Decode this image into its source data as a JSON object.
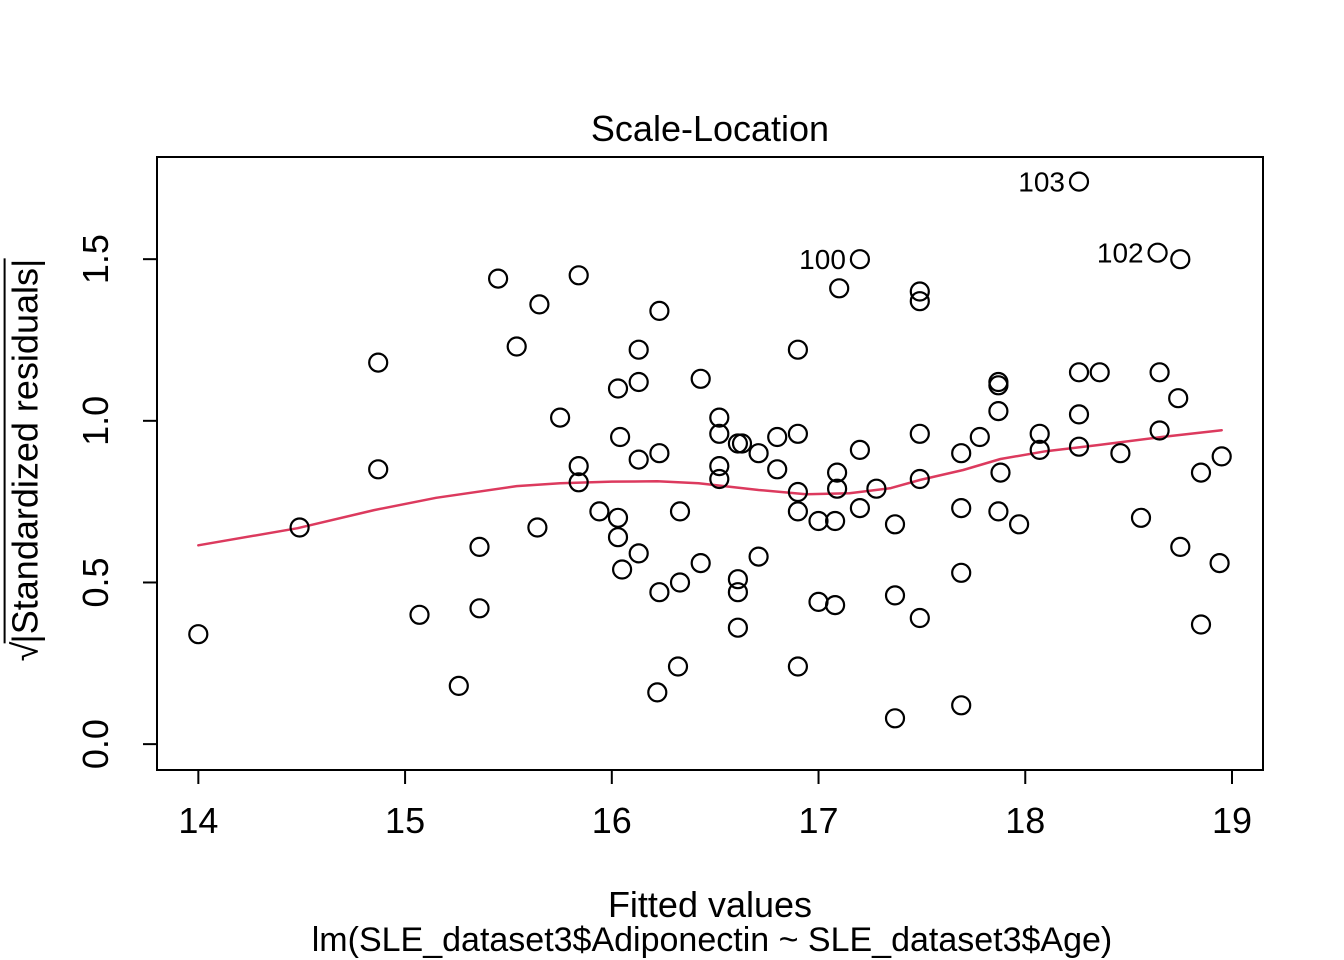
{
  "chart_data": {
    "type": "scatter",
    "title": "Scale-Location",
    "xlabel": "Fitted values",
    "xlabel_sub": "lm(SLE_dataset3$Adiponectin ~ SLE_dataset3$Age)",
    "ylabel_prefix": "√",
    "ylabel_overlined": "|Standardized residuals|",
    "x_ticks": [
      "14",
      "15",
      "16",
      "17",
      "18",
      "19"
    ],
    "y_ticks": [
      "0.0",
      "0.5",
      "1.0",
      "1.5"
    ],
    "xlim": [
      13.8,
      19.15
    ],
    "ylim": [
      -0.08,
      1.816
    ],
    "grid": false,
    "legend": "none",
    "point_color": "#000000",
    "smooth_color": "#DC3A5E",
    "points": [
      [
        14.0,
        0.34
      ],
      [
        14.49,
        0.67
      ],
      [
        14.87,
        1.18
      ],
      [
        14.87,
        0.85
      ],
      [
        15.07,
        0.4
      ],
      [
        15.26,
        0.18
      ],
      [
        15.36,
        0.61
      ],
      [
        15.36,
        0.42
      ],
      [
        15.45,
        1.44
      ],
      [
        15.54,
        1.23
      ],
      [
        15.65,
        1.36
      ],
      [
        15.64,
        0.67
      ],
      [
        15.75,
        1.01
      ],
      [
        15.84,
        1.45
      ],
      [
        15.84,
        0.86
      ],
      [
        15.84,
        0.81
      ],
      [
        15.94,
        0.72
      ],
      [
        16.03,
        1.1
      ],
      [
        16.03,
        0.7
      ],
      [
        16.03,
        0.64
      ],
      [
        16.13,
        1.12
      ],
      [
        16.04,
        0.95
      ],
      [
        16.05,
        0.54
      ],
      [
        16.13,
        1.22
      ],
      [
        16.13,
        0.88
      ],
      [
        16.13,
        0.59
      ],
      [
        16.22,
        0.16
      ],
      [
        16.23,
        1.34
      ],
      [
        16.23,
        0.9
      ],
      [
        16.23,
        0.47
      ],
      [
        16.32,
        0.24
      ],
      [
        16.33,
        0.72
      ],
      [
        16.33,
        0.5
      ],
      [
        16.43,
        1.13
      ],
      [
        16.43,
        0.56
      ],
      [
        16.52,
        1.01
      ],
      [
        16.52,
        0.96
      ],
      [
        16.52,
        0.86
      ],
      [
        16.52,
        0.82
      ],
      [
        16.61,
        0.93
      ],
      [
        16.63,
        0.93
      ],
      [
        16.61,
        0.51
      ],
      [
        16.61,
        0.47
      ],
      [
        16.61,
        0.36
      ],
      [
        16.71,
        0.9
      ],
      [
        16.71,
        0.58
      ],
      [
        16.8,
        0.95
      ],
      [
        16.8,
        0.85
      ],
      [
        16.9,
        1.22
      ],
      [
        16.9,
        0.96
      ],
      [
        16.9,
        0.78
      ],
      [
        16.9,
        0.72
      ],
      [
        16.9,
        0.24
      ],
      [
        17.0,
        0.69
      ],
      [
        17.0,
        0.44
      ],
      [
        17.08,
        0.69
      ],
      [
        17.08,
        0.43
      ],
      [
        17.09,
        0.84
      ],
      [
        17.09,
        0.79
      ],
      [
        17.1,
        1.41
      ],
      [
        17.2,
        1.5
      ],
      [
        17.2,
        0.91
      ],
      [
        17.2,
        0.73
      ],
      [
        17.28,
        0.79
      ],
      [
        17.37,
        0.68
      ],
      [
        17.37,
        0.46
      ],
      [
        17.37,
        0.08
      ],
      [
        17.49,
        1.4
      ],
      [
        17.49,
        1.37
      ],
      [
        17.49,
        0.96
      ],
      [
        17.49,
        0.82
      ],
      [
        17.49,
        0.39
      ],
      [
        17.69,
        0.9
      ],
      [
        17.69,
        0.73
      ],
      [
        17.69,
        0.53
      ],
      [
        17.69,
        0.12
      ],
      [
        17.78,
        0.95
      ],
      [
        17.87,
        1.12
      ],
      [
        17.87,
        1.11
      ],
      [
        17.87,
        1.03
      ],
      [
        17.88,
        0.84
      ],
      [
        17.87,
        0.72
      ],
      [
        17.97,
        0.68
      ],
      [
        18.07,
        0.96
      ],
      [
        18.07,
        0.91
      ],
      [
        18.26,
        1.74
      ],
      [
        18.26,
        1.15
      ],
      [
        18.26,
        1.02
      ],
      [
        18.26,
        0.92
      ],
      [
        18.36,
        1.15
      ],
      [
        18.46,
        0.9
      ],
      [
        18.56,
        0.7
      ],
      [
        18.64,
        1.52
      ],
      [
        18.65,
        1.15
      ],
      [
        18.65,
        0.97
      ],
      [
        18.74,
        1.07
      ],
      [
        18.75,
        1.5
      ],
      [
        18.75,
        0.61
      ],
      [
        18.85,
        0.84
      ],
      [
        18.85,
        0.37
      ],
      [
        18.95,
        0.89
      ],
      [
        18.94,
        0.56
      ]
    ],
    "labeled_points": [
      {
        "label": "103",
        "x": 18.26,
        "y": 1.74
      },
      {
        "label": "100",
        "x": 17.2,
        "y": 1.5
      },
      {
        "label": "102",
        "x": 18.64,
        "y": 1.52
      }
    ],
    "smooth_line": [
      [
        14.0,
        0.615
      ],
      [
        14.48,
        0.668
      ],
      [
        14.85,
        0.724
      ],
      [
        15.15,
        0.762
      ],
      [
        15.54,
        0.798
      ],
      [
        15.75,
        0.807
      ],
      [
        16.0,
        0.812
      ],
      [
        16.22,
        0.813
      ],
      [
        16.42,
        0.807
      ],
      [
        16.71,
        0.786
      ],
      [
        16.94,
        0.773
      ],
      [
        17.15,
        0.776
      ],
      [
        17.35,
        0.792
      ],
      [
        17.49,
        0.817
      ],
      [
        17.7,
        0.848
      ],
      [
        17.88,
        0.882
      ],
      [
        18.1,
        0.906
      ],
      [
        18.35,
        0.925
      ],
      [
        18.66,
        0.95
      ],
      [
        18.95,
        0.971
      ]
    ]
  }
}
